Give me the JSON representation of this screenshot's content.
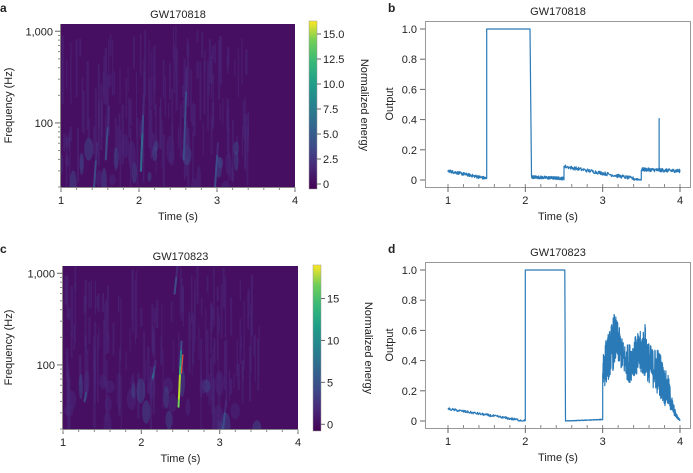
{
  "chart_data": [
    {
      "panel": "a",
      "type": "heatmap",
      "title": "GW170818",
      "xlabel": "Time (s)",
      "ylabel": "Frequency (Hz)",
      "xlim": [
        1,
        4
      ],
      "ylim": [
        20,
        1200
      ],
      "yscale": "log",
      "xticks": [
        1,
        2,
        3,
        4
      ],
      "xtick_labels": [
        "1",
        "2",
        "3",
        "4"
      ],
      "yticks": [
        100,
        1000
      ],
      "ytick_labels": [
        "100",
        "1,000"
      ],
      "colorbar": {
        "label": "Normalized energy",
        "range": [
          -0.5,
          16.3
        ],
        "ticks": [
          0,
          2.5,
          5.0,
          7.5,
          10.0,
          12.5,
          15.0
        ],
        "tick_labels": [
          "0",
          "2.5",
          "5.0",
          "7.5",
          "10.0",
          "12.5",
          "15.0"
        ],
        "colormap": "viridis"
      },
      "features": [
        {
          "t": 2.05,
          "f_low": 30,
          "f_high": 200,
          "energy": 5
        },
        {
          "t": 2.6,
          "f_low": 40,
          "f_high": 400,
          "energy": 4
        },
        {
          "t": 3.0,
          "f_low": 20,
          "f_high": 60,
          "energy": 4
        },
        {
          "t": 1.45,
          "f_low": 20,
          "f_high": 60,
          "energy": 3.5
        },
        {
          "t": 1.6,
          "f_low": 40,
          "f_high": 150,
          "energy": 3
        }
      ],
      "quiet_after": 3.4
    },
    {
      "panel": "b",
      "type": "line",
      "title": "GW170818",
      "xlabel": "Time (s)",
      "ylabel": "Output",
      "xlim": [
        1,
        4
      ],
      "ylim": [
        0,
        1.0
      ],
      "xticks": [
        1,
        2,
        3,
        4
      ],
      "xtick_labels": [
        "1",
        "2",
        "3",
        "4"
      ],
      "yticks": [
        0,
        0.2,
        0.4,
        0.6,
        0.8,
        1.0
      ],
      "ytick_labels": [
        "0",
        "0.2",
        "0.4",
        "0.6",
        "0.8",
        "1.0"
      ],
      "series": [
        {
          "name": "output",
          "color": "#2a7ab8",
          "segments": [
            {
              "x0": 1.0,
              "x1": 1.5,
              "y0": 0.06,
              "y1": 0.01,
              "noise": 0.01
            },
            {
              "x0": 1.5,
              "x1": 2.06,
              "y0": 1.0,
              "y1": 1.0,
              "noise": 0.0
            },
            {
              "x0": 2.08,
              "x1": 2.5,
              "y0": 0.02,
              "y1": 0.01,
              "noise": 0.01
            },
            {
              "x0": 2.5,
              "x1": 3.5,
              "y0": 0.09,
              "y1": 0.0,
              "noise": 0.012
            },
            {
              "x0": 3.5,
              "x1": 4.0,
              "y0": 0.07,
              "y1": 0.06,
              "noise": 0.012
            }
          ],
          "spikes": [
            {
              "x": 3.73,
              "y": 0.41
            }
          ]
        }
      ]
    },
    {
      "panel": "c",
      "type": "heatmap",
      "title": "GW170823",
      "xlabel": "Time (s)",
      "ylabel": "Frequency (Hz)",
      "xlim": [
        1,
        4
      ],
      "ylim": [
        20,
        1200
      ],
      "yscale": "log",
      "xticks": [
        1,
        2,
        3,
        4
      ],
      "xtick_labels": [
        "1",
        "2",
        "3",
        "4"
      ],
      "yticks": [
        100,
        1000
      ],
      "ytick_labels": [
        "100",
        "1,000"
      ],
      "colorbar": {
        "label": "Normalized energy",
        "range": [
          -0.8,
          19
        ],
        "ticks": [
          0,
          5,
          10,
          15
        ],
        "tick_labels": [
          "0",
          "5",
          "10",
          "15"
        ],
        "colormap": "viridis"
      },
      "features": [
        {
          "t": 2.5,
          "f_low": 35,
          "f_high": 180,
          "energy": 17
        },
        {
          "t": 2.17,
          "f_low": 70,
          "f_high": 110,
          "energy": 5
        },
        {
          "t": 3.07,
          "f_low": 20,
          "f_high": 40,
          "energy": 4
        },
        {
          "t": 1.3,
          "f_low": 40,
          "f_high": 60,
          "energy": 3.5
        },
        {
          "t": 2.45,
          "f_low": 600,
          "f_high": 1200,
          "energy": 4
        }
      ],
      "quiet_after": 3.5
    },
    {
      "panel": "d",
      "type": "line",
      "title": "GW170823",
      "xlabel": "Time (s)",
      "ylabel": "Output",
      "xlim": [
        1,
        4
      ],
      "ylim": [
        0,
        1.0
      ],
      "xticks": [
        1,
        2,
        3,
        4
      ],
      "xtick_labels": [
        "1",
        "2",
        "3",
        "4"
      ],
      "yticks": [
        0,
        0.2,
        0.4,
        0.6,
        0.8,
        1.0
      ],
      "ytick_labels": [
        "0",
        "0.2",
        "0.4",
        "0.6",
        "0.8",
        "1.0"
      ],
      "series": [
        {
          "name": "output",
          "color": "#2a7ab8",
          "segments": [
            {
              "x0": 1.0,
              "x1": 2.0,
              "y0": 0.08,
              "y1": 0.0,
              "noise": 0.008
            },
            {
              "x0": 2.0,
              "x1": 2.51,
              "y0": 1.0,
              "y1": 1.0,
              "noise": 0.0
            },
            {
              "x0": 2.52,
              "x1": 3.0,
              "y0": 0.0,
              "y1": 0.01,
              "noise": 0.002
            }
          ],
          "envelope": {
            "x": [
              3.0,
              3.05,
              3.1,
              3.15,
              3.2,
              3.25,
              3.3,
              3.35,
              3.4,
              3.45,
              3.5,
              3.55,
              3.6,
              3.65,
              3.7,
              3.75,
              3.8,
              3.85,
              3.9,
              3.95,
              4.0
            ],
            "low": [
              0.2,
              0.25,
              0.3,
              0.35,
              0.38,
              0.33,
              0.28,
              0.25,
              0.3,
              0.28,
              0.3,
              0.28,
              0.25,
              0.22,
              0.18,
              0.15,
              0.1,
              0.08,
              0.05,
              0.02,
              0.0
            ],
            "high": [
              0.5,
              0.55,
              0.62,
              0.72,
              0.65,
              0.55,
              0.5,
              0.52,
              0.55,
              0.58,
              0.6,
              0.65,
              0.52,
              0.48,
              0.5,
              0.45,
              0.35,
              0.3,
              0.15,
              0.05,
              0.01
            ]
          }
        }
      ]
    }
  ]
}
